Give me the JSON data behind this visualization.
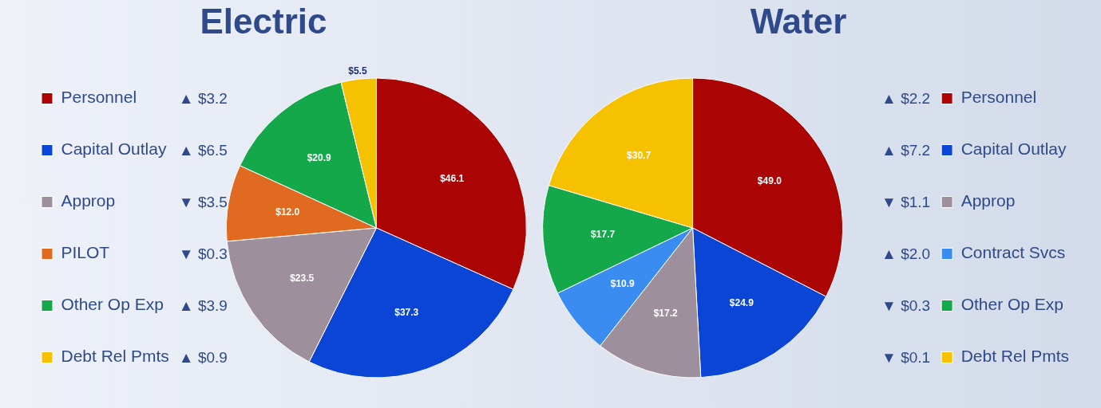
{
  "chart_data": [
    {
      "type": "pie",
      "title": "Electric",
      "categories": [
        "Personnel",
        "Capital Outlay",
        "Approp",
        "PILOT",
        "Other Op Exp",
        "Debt Rel Pmts"
      ],
      "values": [
        46.1,
        37.3,
        23.5,
        12.0,
        20.9,
        5.5
      ],
      "value_labels": [
        "$46.1",
        "$37.3",
        "$23.5",
        "$12.0",
        "$20.9",
        "$5.5"
      ],
      "colors": [
        "#aa0404",
        "#0b45d6",
        "#9d8f9c",
        "#e06a1f",
        "#14a84b",
        "#f5c100"
      ],
      "legend": "left",
      "annotations": [
        "▲ $3.2",
        "▲ $6.5",
        "▼ $3.5",
        "▼ $0.3",
        "▲ $3.9",
        "▲ $0.9"
      ]
    },
    {
      "type": "pie",
      "title": "Water",
      "categories": [
        "Personnel",
        "Capital Outlay",
        "Approp",
        "Contract Svcs",
        "Other Op Exp",
        "Debt Rel Pmts"
      ],
      "values": [
        49.0,
        24.9,
        17.2,
        10.9,
        17.7,
        30.7
      ],
      "value_labels": [
        "$49.0",
        "$24.9",
        "$17.2",
        "$10.9",
        "$17.7",
        "$30.7"
      ],
      "colors": [
        "#aa0404",
        "#0b45d6",
        "#9d8f9c",
        "#3a8cf0",
        "#14a84b",
        "#f5c100"
      ],
      "legend": "right",
      "annotations": [
        "▲ $2.2",
        "▲ $7.2",
        "▼ $1.1",
        "▲ $2.0",
        "▼ $0.3",
        "▼ $0.1"
      ]
    }
  ]
}
